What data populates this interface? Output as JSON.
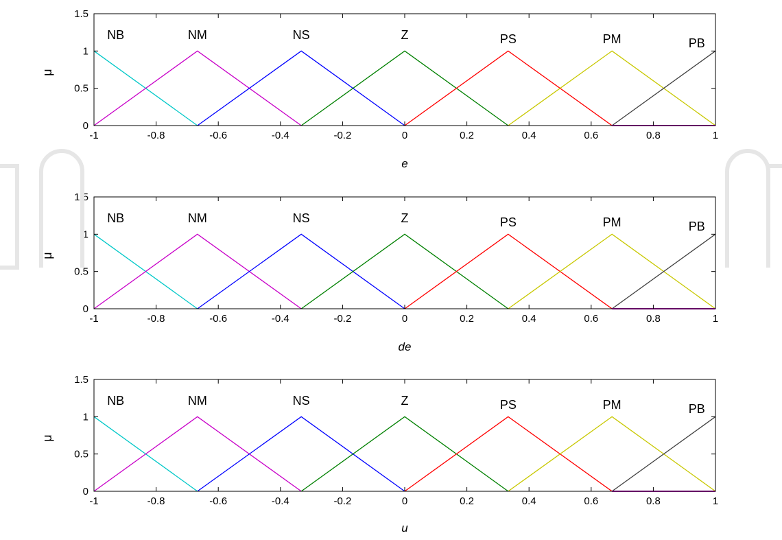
{
  "chart_data": [
    {
      "type": "line",
      "xlabel": "e",
      "ylabel": "μ",
      "xlim": [
        -1,
        1
      ],
      "ylim": [
        0,
        1.5
      ],
      "x_ticks": [
        "-1",
        "-0.8",
        "-0.6",
        "-0.4",
        "-0.2",
        "0",
        "0.2",
        "0.4",
        "0.6",
        "0.8",
        "1"
      ],
      "y_ticks": [
        "0",
        "0.5",
        "1",
        "1.5"
      ],
      "grid": false,
      "series": [
        {
          "name": "NB",
          "color": "#00c8c8",
          "x": [
            -1,
            -0.667
          ],
          "y": [
            1,
            0
          ]
        },
        {
          "name": "NM",
          "color": "#c800c8",
          "x": [
            -1,
            -0.667,
            -0.333
          ],
          "y": [
            0,
            1,
            0
          ]
        },
        {
          "name": "NS",
          "color": "#0000ff",
          "x": [
            -0.667,
            -0.333,
            0
          ],
          "y": [
            0,
            1,
            0
          ]
        },
        {
          "name": "Z",
          "color": "#008000",
          "x": [
            -0.333,
            0,
            0.333
          ],
          "y": [
            0,
            1,
            0
          ]
        },
        {
          "name": "PS",
          "color": "#ff0000",
          "x": [
            0,
            0.333,
            0.667
          ],
          "y": [
            0,
            1,
            0
          ]
        },
        {
          "name": "PM",
          "color": "#c8c800",
          "x": [
            0.333,
            0.667,
            1
          ],
          "y": [
            0,
            1,
            0
          ]
        },
        {
          "name": "PB",
          "color": "#404040",
          "x": [
            0.667,
            1
          ],
          "y": [
            0,
            1
          ]
        }
      ],
      "baseline": {
        "color": "#c800c8",
        "x": [
          0.667,
          1
        ],
        "y": [
          0,
          0
        ]
      }
    },
    {
      "type": "line",
      "xlabel": "de",
      "ylabel": "μ",
      "xlim": [
        -1,
        1
      ],
      "ylim": [
        0,
        1.5
      ],
      "x_ticks": [
        "-1",
        "-0.8",
        "-0.6",
        "-0.4",
        "-0.2",
        "0",
        "0.2",
        "0.4",
        "0.6",
        "0.8",
        "1"
      ],
      "y_ticks": [
        "0",
        "0.5",
        "1",
        "1.5"
      ],
      "grid": false,
      "series": [
        {
          "name": "NB",
          "color": "#00c8c8",
          "x": [
            -1,
            -0.667
          ],
          "y": [
            1,
            0
          ]
        },
        {
          "name": "NM",
          "color": "#c800c8",
          "x": [
            -1,
            -0.667,
            -0.333
          ],
          "y": [
            0,
            1,
            0
          ]
        },
        {
          "name": "NS",
          "color": "#0000ff",
          "x": [
            -0.667,
            -0.333,
            0
          ],
          "y": [
            0,
            1,
            0
          ]
        },
        {
          "name": "Z",
          "color": "#008000",
          "x": [
            -0.333,
            0,
            0.333
          ],
          "y": [
            0,
            1,
            0
          ]
        },
        {
          "name": "PS",
          "color": "#ff0000",
          "x": [
            0,
            0.333,
            0.667
          ],
          "y": [
            0,
            1,
            0
          ]
        },
        {
          "name": "PM",
          "color": "#c8c800",
          "x": [
            0.333,
            0.667,
            1
          ],
          "y": [
            0,
            1,
            0
          ]
        },
        {
          "name": "PB",
          "color": "#404040",
          "x": [
            0.667,
            1
          ],
          "y": [
            0,
            1
          ]
        }
      ],
      "baseline": {
        "color": "#c800c8",
        "x": [
          0.667,
          1
        ],
        "y": [
          0,
          0
        ]
      }
    },
    {
      "type": "line",
      "xlabel": "u",
      "ylabel": "μ",
      "xlim": [
        -1,
        1
      ],
      "ylim": [
        0,
        1.5
      ],
      "x_ticks": [
        "-1",
        "-0.8",
        "-0.6",
        "-0.4",
        "-0.2",
        "0",
        "0.2",
        "0.4",
        "0.6",
        "0.8",
        "1"
      ],
      "y_ticks": [
        "0",
        "0.5",
        "1",
        "1.5"
      ],
      "grid": false,
      "series": [
        {
          "name": "NB",
          "color": "#00c8c8",
          "x": [
            -1,
            -0.667
          ],
          "y": [
            1,
            0
          ]
        },
        {
          "name": "NM",
          "color": "#c800c8",
          "x": [
            -1,
            -0.667,
            -0.333
          ],
          "y": [
            0,
            1,
            0
          ]
        },
        {
          "name": "NS",
          "color": "#0000ff",
          "x": [
            -0.667,
            -0.333,
            0
          ],
          "y": [
            0,
            1,
            0
          ]
        },
        {
          "name": "Z",
          "color": "#008000",
          "x": [
            -0.333,
            0,
            0.333
          ],
          "y": [
            0,
            1,
            0
          ]
        },
        {
          "name": "PS",
          "color": "#ff0000",
          "x": [
            0,
            0.333,
            0.667
          ],
          "y": [
            0,
            1,
            0
          ]
        },
        {
          "name": "PM",
          "color": "#c8c800",
          "x": [
            0.333,
            0.667,
            1
          ],
          "y": [
            0,
            1,
            0
          ]
        },
        {
          "name": "PB",
          "color": "#404040",
          "x": [
            0.667,
            1
          ],
          "y": [
            0,
            1
          ]
        }
      ],
      "baseline": {
        "color": "#c800c8",
        "x": [
          0.667,
          1
        ],
        "y": [
          0,
          0
        ]
      }
    }
  ]
}
